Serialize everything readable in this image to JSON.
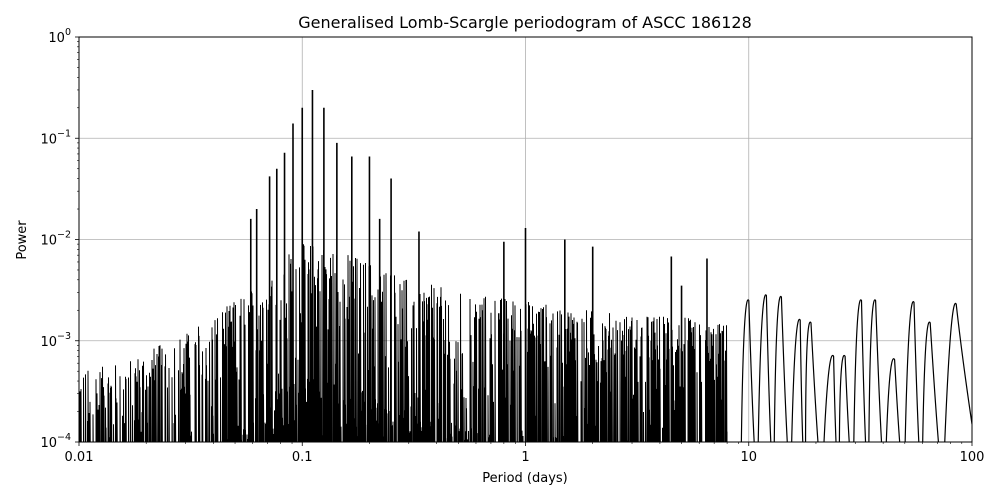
{
  "chart_data": {
    "type": "line",
    "title": "Generalised Lomb-Scargle periodogram of ASCC 186128",
    "xlabel": "Period (days)",
    "ylabel": "Power",
    "xscale": "log",
    "yscale": "log",
    "xlim": [
      0.01,
      100
    ],
    "ylim": [
      0.0001,
      1
    ],
    "grid": true,
    "line_color": "#000000",
    "grid_color": "#b0b0b0",
    "x_ticks": [
      {
        "value": 0.01,
        "label": "0.01"
      },
      {
        "value": 0.1,
        "label": "0.1"
      },
      {
        "value": 1,
        "label": "1"
      },
      {
        "value": 10,
        "label": "10"
      },
      {
        "value": 100,
        "label": "100"
      }
    ],
    "y_ticks": [
      {
        "value": 0.0001,
        "base": "10",
        "exp": "−4"
      },
      {
        "value": 0.001,
        "base": "10",
        "exp": "−3"
      },
      {
        "value": 0.01,
        "base": "10",
        "exp": "−2"
      },
      {
        "value": 0.1,
        "base": "10",
        "exp": "−1"
      },
      {
        "value": 1,
        "base": "10",
        "exp": "0"
      }
    ],
    "envelope": {
      "x": [
        0.01,
        0.015,
        0.02,
        0.03,
        0.04,
        0.05,
        0.06,
        0.07,
        0.08,
        0.09,
        0.1,
        0.12,
        0.14,
        0.17,
        0.2,
        0.25,
        0.3,
        0.4,
        0.5,
        0.7,
        1.0,
        1.5,
        2.0,
        3.0,
        4.0,
        5.0,
        6.0,
        7.0
      ],
      "y": [
        0.0005,
        0.0006,
        0.0008,
        0.0012,
        0.0018,
        0.0025,
        0.0035,
        0.005,
        0.007,
        0.008,
        0.009,
        0.009,
        0.008,
        0.007,
        0.006,
        0.005,
        0.004,
        0.0035,
        0.003,
        0.0028,
        0.0025,
        0.0022,
        0.002,
        0.0018,
        0.0018,
        0.0018,
        0.0015,
        0.0015
      ]
    },
    "peaks": [
      {
        "period": 0.0714,
        "power": 0.042
      },
      {
        "period": 0.0769,
        "power": 0.05
      },
      {
        "period": 0.0833,
        "power": 0.072
      },
      {
        "period": 0.0909,
        "power": 0.14
      },
      {
        "period": 0.1,
        "power": 0.2
      },
      {
        "period": 0.1111,
        "power": 0.3
      },
      {
        "period": 0.125,
        "power": 0.2
      },
      {
        "period": 0.1429,
        "power": 0.09
      },
      {
        "period": 0.1667,
        "power": 0.066
      },
      {
        "period": 0.2,
        "power": 0.066
      },
      {
        "period": 0.25,
        "power": 0.04
      },
      {
        "period": 0.0625,
        "power": 0.02
      },
      {
        "period": 0.0588,
        "power": 0.016
      },
      {
        "period": 0.2222,
        "power": 0.016
      },
      {
        "period": 0.3333,
        "power": 0.012
      },
      {
        "period": 0.8,
        "power": 0.0095
      },
      {
        "period": 1.0,
        "power": 0.013
      },
      {
        "period": 1.5,
        "power": 0.01
      },
      {
        "period": 2.0,
        "power": 0.0085
      },
      {
        "period": 4.5,
        "power": 0.0068
      },
      {
        "period": 6.5,
        "power": 0.0065
      },
      {
        "period": 5.0,
        "power": 0.0035
      }
    ],
    "tail": [
      {
        "period": 10.0,
        "power": 0.0025
      },
      {
        "period": 12.0,
        "power": 0.0028
      },
      {
        "period": 14.0,
        "power": 0.0027
      },
      {
        "period": 17.0,
        "power": 0.0016
      },
      {
        "period": 19.0,
        "power": 0.0015
      },
      {
        "period": 24.0,
        "power": 0.0007
      },
      {
        "period": 27.0,
        "power": 0.0007
      },
      {
        "period": 32.0,
        "power": 0.0025
      },
      {
        "period": 37.0,
        "power": 0.0025
      },
      {
        "period": 45.0,
        "power": 0.00065
      },
      {
        "period": 55.0,
        "power": 0.0024
      },
      {
        "period": 65.0,
        "power": 0.0015
      },
      {
        "period": 85.0,
        "power": 0.0023
      }
    ]
  }
}
